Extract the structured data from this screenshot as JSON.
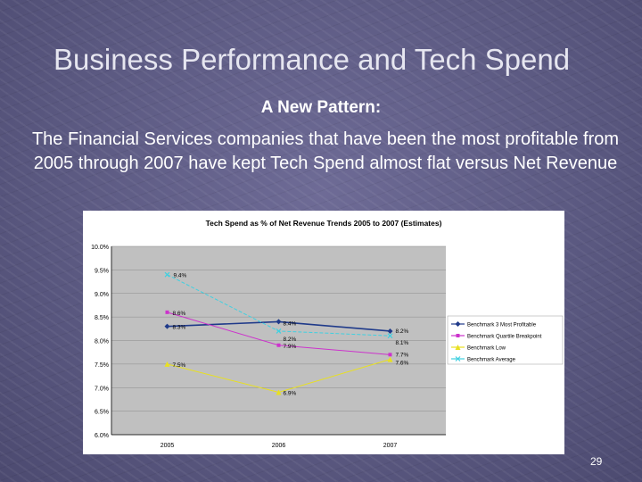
{
  "slide": {
    "title": "Business Performance and Tech Spend",
    "subtitle": "A New Pattern:",
    "body": "The Financial Services companies that have been the most profitable from 2005 through 2007 have kept Tech Spend almost flat versus Net Revenue",
    "page_number": "29"
  },
  "chart_data": {
    "type": "line",
    "title": "Tech Spend as % of Net Revenue Trends 2005 to 2007 (Estimates)",
    "xlabel": "",
    "ylabel": "",
    "categories": [
      "2005",
      "2006",
      "2007"
    ],
    "ylim": [
      6.0,
      10.0
    ],
    "yticks": [
      "6.0%",
      "6.5%",
      "7.0%",
      "7.5%",
      "8.0%",
      "8.5%",
      "9.0%",
      "9.5%",
      "10.0%"
    ],
    "grid": true,
    "legend_position": "right",
    "series": [
      {
        "name": "Benchmark 3 Most Profitable",
        "values": [
          8.3,
          8.4,
          8.2
        ],
        "labels": [
          "8.3%",
          "8.4%",
          "8.2%"
        ],
        "color": "#1f3a8a",
        "marker": "diamond"
      },
      {
        "name": "Benchmark Quartile Breakpoint",
        "values": [
          8.6,
          7.9,
          7.7
        ],
        "labels": [
          "8.6%",
          "7.9%",
          "7.7%"
        ],
        "color": "#cc33cc",
        "marker": "square"
      },
      {
        "name": "Benchmark Low",
        "values": [
          7.5,
          6.9,
          7.6
        ],
        "labels": [
          "7.5%",
          "6.9%",
          "7.6%"
        ],
        "color": "#e8e020",
        "marker": "triangle"
      },
      {
        "name": "Benchmark Average",
        "values": [
          9.4,
          8.2,
          8.1
        ],
        "labels": [
          "9.4%",
          "8.2%",
          "8.1%"
        ],
        "color": "#40d0e0",
        "marker": "x"
      }
    ]
  }
}
